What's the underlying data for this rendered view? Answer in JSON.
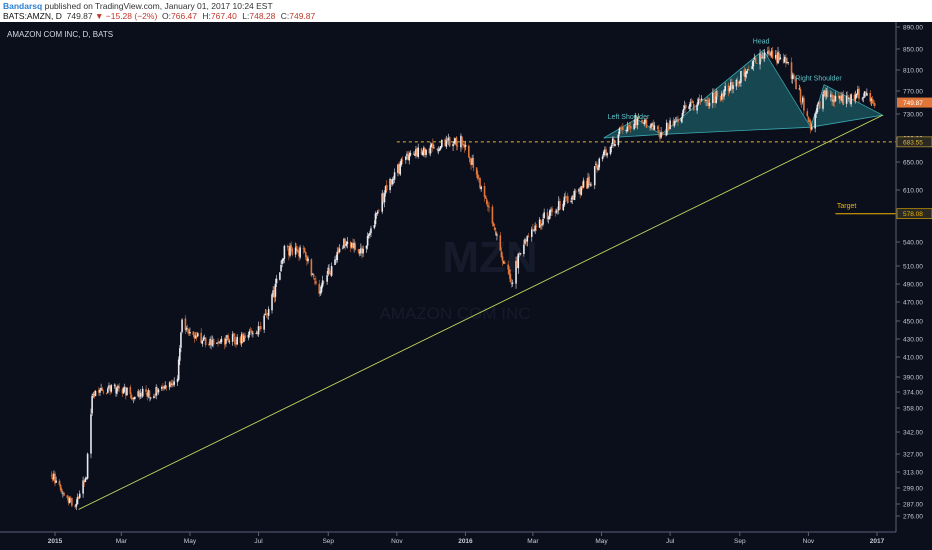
{
  "header": {
    "author": "Bandarsq",
    "published": "published on TradingView.com, January 01, 2017 10:24 EST",
    "symbol": "BATS:AMZN, D",
    "last": "749.87",
    "change_arrow": "▼",
    "change": "−15.28 (−2%)",
    "o_label": "O:",
    "o_value": "766.47",
    "h_label": "H:",
    "h_value": "767.40",
    "l_label": "L:",
    "l_value": "748.28",
    "c_label": "C:",
    "c_value": "749.87"
  },
  "chart_title": "AMAZON COM INC, D, BATS",
  "colors": {
    "background": "#0b0f1c",
    "candle_up": "#e9e9ee",
    "candle_down": "#e0763a",
    "trendline": "#c3d35c",
    "pattern_fill": "#1e6b73",
    "neckline": "#e0b43a",
    "target": "#f0b400",
    "last_price_badge": "#e0763a"
  },
  "chart_data": {
    "type": "candlestick",
    "y_ticks": [
      "890.00",
      "850.00",
      "810.00",
      "770.00",
      "730.00",
      "690.00",
      "650.00",
      "610.00",
      "575.00",
      "540.00",
      "510.00",
      "490.00",
      "470.00",
      "450.00",
      "430.00",
      "410.00",
      "390.00",
      "374.00",
      "358.00",
      "342.00",
      "327.00",
      "313.00",
      "299.00",
      "287.00",
      "276.00"
    ],
    "x_ticks": [
      "2015",
      "Mar",
      "May",
      "Jul",
      "Sep",
      "Nov",
      "2016",
      "Mar",
      "May",
      "Jul",
      "Sep",
      "Nov",
      "2017"
    ],
    "price_labels": [
      {
        "value": "749.87",
        "kind": "last"
      },
      {
        "value": "683.55",
        "kind": "neckline"
      },
      {
        "value": "578.08",
        "kind": "target"
      }
    ],
    "annotations": [
      {
        "text": "Head",
        "date": "2016-09-20",
        "price": 860
      },
      {
        "text": "Left Shoulder",
        "date": "2016-05-25",
        "price": 722
      },
      {
        "text": "Right Shoulder",
        "date": "2016-11-10",
        "price": 790
      },
      {
        "text": "Target",
        "date": "2016-12-05",
        "price": 586
      }
    ],
    "trendline": {
      "from": {
        "date": "2015-01-22",
        "price": 282
      },
      "to": {
        "date": "2017-01-06",
        "price": 728
      }
    },
    "neckline_price": 683.55,
    "target_price": 578.08,
    "head_and_shoulders": [
      {
        "date": "2016-05-03",
        "price": 690
      },
      {
        "date": "2016-06-01",
        "price": 722
      },
      {
        "date": "2016-06-23",
        "price": 696
      },
      {
        "date": "2016-09-22",
        "price": 848
      },
      {
        "date": "2016-11-03",
        "price": 708
      },
      {
        "date": "2016-11-15",
        "price": 782
      },
      {
        "date": "2017-01-06",
        "price": 728
      }
    ],
    "price_path": [
      [
        "2014-12-29",
        310
      ],
      [
        "2015-01-05",
        302
      ],
      [
        "2015-01-12",
        292
      ],
      [
        "2015-01-20",
        286
      ],
      [
        "2015-01-29",
        312
      ],
      [
        "2015-02-03",
        368
      ],
      [
        "2015-02-20",
        380
      ],
      [
        "2015-03-10",
        372
      ],
      [
        "2015-03-31",
        374
      ],
      [
        "2015-04-20",
        388
      ],
      [
        "2015-04-24",
        448
      ],
      [
        "2015-05-10",
        428
      ],
      [
        "2015-06-15",
        430
      ],
      [
        "2015-06-30",
        436
      ],
      [
        "2015-07-15",
        480
      ],
      [
        "2015-07-24",
        530
      ],
      [
        "2015-08-10",
        528
      ],
      [
        "2015-08-24",
        480
      ],
      [
        "2015-09-15",
        540
      ],
      [
        "2015-10-01",
        525
      ],
      [
        "2015-10-23",
        615
      ],
      [
        "2015-11-10",
        660
      ],
      [
        "2015-12-01",
        672
      ],
      [
        "2015-12-29",
        688
      ],
      [
        "2016-01-15",
        612
      ],
      [
        "2016-02-10",
        490
      ],
      [
        "2016-02-25",
        552
      ],
      [
        "2016-03-15",
        578
      ],
      [
        "2016-04-01",
        598
      ],
      [
        "2016-04-22",
        624
      ],
      [
        "2016-04-29",
        655
      ],
      [
        "2016-05-20",
        705
      ],
      [
        "2016-06-01",
        722
      ],
      [
        "2016-06-23",
        696
      ],
      [
        "2016-07-15",
        740
      ],
      [
        "2016-08-15",
        762
      ],
      [
        "2016-09-22",
        840
      ],
      [
        "2016-10-12",
        828
      ],
      [
        "2016-11-03",
        712
      ],
      [
        "2016-11-15",
        762
      ],
      [
        "2016-12-01",
        752
      ],
      [
        "2016-12-20",
        768
      ],
      [
        "2016-12-30",
        749.87
      ]
    ]
  },
  "watermark": {
    "symbol": "MZN",
    "name": "AMAZON COM INC"
  }
}
